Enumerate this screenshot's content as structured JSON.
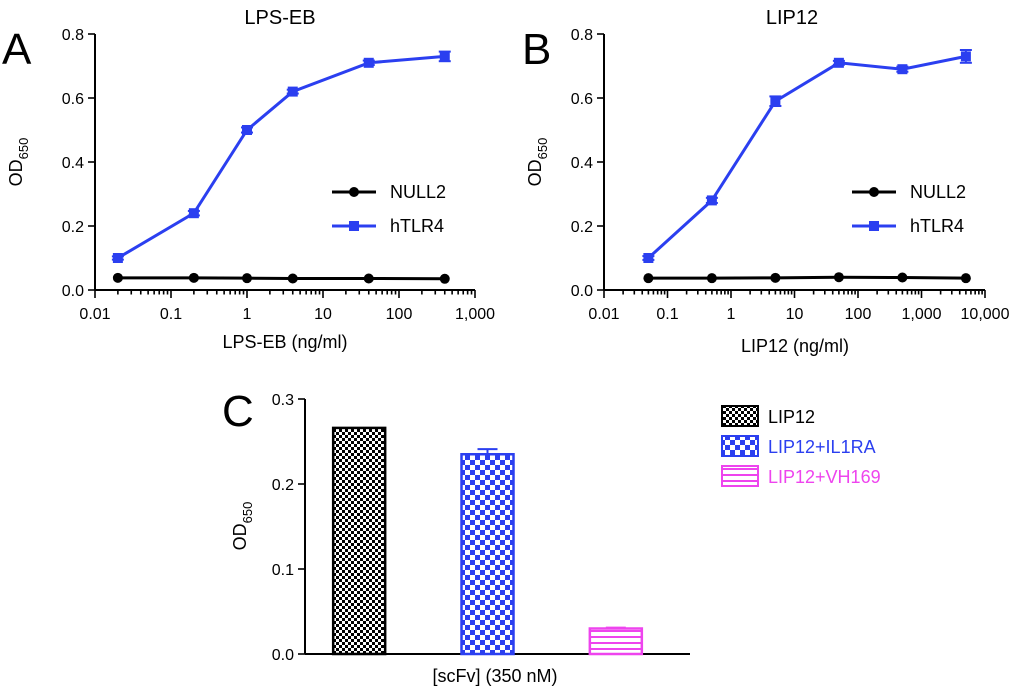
{
  "chart_data": [
    {
      "panel_label": "A",
      "type": "line",
      "title": "LPS-EB",
      "xlabel": "LPS-EB (ng/ml)",
      "ylabel": "OD",
      "ylabel_sub": "650",
      "xscale": "log",
      "xlim": [
        0.01,
        1000
      ],
      "ylim": [
        0,
        0.8
      ],
      "xticks": [
        0.01,
        0.1,
        1,
        10,
        100,
        1000
      ],
      "xtick_labels": [
        "0.01",
        "0.1",
        "1",
        "10",
        "100",
        "1,000"
      ],
      "yticks": [
        0.0,
        0.2,
        0.4,
        0.6,
        0.8
      ],
      "ytick_labels": [
        "0.0",
        "0.2",
        "0.4",
        "0.6",
        "0.8"
      ],
      "legend_position": "center-right",
      "series": [
        {
          "name": "NULL2",
          "color": "#000000",
          "marker": "circle",
          "x": [
            0.02,
            0.2,
            1,
            4,
            40,
            400
          ],
          "y": [
            0.038,
            0.038,
            0.037,
            0.036,
            0.036,
            0.035
          ],
          "err": [
            0,
            0,
            0,
            0,
            0,
            0
          ]
        },
        {
          "name": "hTLR4",
          "color": "#2b3ff0",
          "marker": "square",
          "x": [
            0.02,
            0.2,
            1,
            4,
            40,
            400
          ],
          "y": [
            0.1,
            0.24,
            0.5,
            0.62,
            0.71,
            0.73
          ],
          "err": [
            0.005,
            0.007,
            0.008,
            0.006,
            0.007,
            0.015
          ]
        }
      ]
    },
    {
      "panel_label": "B",
      "type": "line",
      "title": "LIP12",
      "xlabel": "LIP12 (ng/ml)",
      "ylabel": "OD",
      "ylabel_sub": "650",
      "xscale": "log",
      "xlim": [
        0.01,
        10000
      ],
      "ylim": [
        0,
        0.8
      ],
      "xticks": [
        0.01,
        0.1,
        1,
        10,
        100,
        1000,
        10000
      ],
      "xtick_labels": [
        "0.01",
        "0.1",
        "1",
        "10",
        "100",
        "1,000",
        "10,000"
      ],
      "yticks": [
        0.0,
        0.2,
        0.4,
        0.6,
        0.8
      ],
      "ytick_labels": [
        "0.0",
        "0.2",
        "0.4",
        "0.6",
        "0.8"
      ],
      "legend_position": "center-right",
      "series": [
        {
          "name": "NULL2",
          "color": "#000000",
          "marker": "circle",
          "x": [
            0.05,
            0.5,
            5,
            50,
            500,
            5000
          ],
          "y": [
            0.037,
            0.037,
            0.038,
            0.04,
            0.039,
            0.037
          ],
          "err": [
            0,
            0,
            0,
            0,
            0,
            0
          ]
        },
        {
          "name": "hTLR4",
          "color": "#2b3ff0",
          "marker": "square",
          "x": [
            0.05,
            0.5,
            5,
            50,
            500,
            5000
          ],
          "y": [
            0.1,
            0.28,
            0.59,
            0.71,
            0.69,
            0.73
          ],
          "err": [
            0.006,
            0.008,
            0.015,
            0.006,
            0.008,
            0.02
          ]
        }
      ]
    },
    {
      "panel_label": "C",
      "type": "bar",
      "title": "",
      "xlabel": "[scFv] (350 nM)",
      "ylabel": "OD",
      "ylabel_sub": "650",
      "ylim": [
        0,
        0.3
      ],
      "yticks": [
        0.0,
        0.1,
        0.2,
        0.3
      ],
      "ytick_labels": [
        "0.0",
        "0.1",
        "0.2",
        "0.3"
      ],
      "legend_position": "top-right",
      "series": [
        {
          "name": "LIP12",
          "value": 0.266,
          "err": 0.0,
          "color": "#000000",
          "pattern": "fine-checker"
        },
        {
          "name": "LIP12+IL1RA",
          "value": 0.235,
          "err": 0.006,
          "color": "#2b3ff0",
          "pattern": "coarse-checker"
        },
        {
          "name": "LIP12+VH169",
          "value": 0.03,
          "err": 0.001,
          "color": "#ee44ee",
          "pattern": "horizontal-lines"
        }
      ]
    }
  ]
}
